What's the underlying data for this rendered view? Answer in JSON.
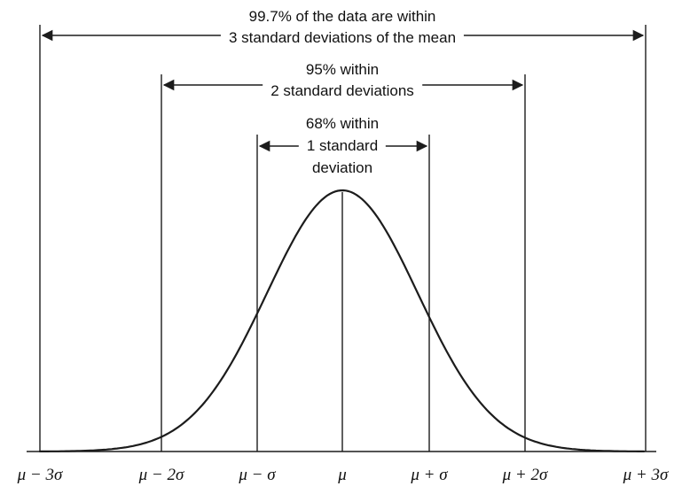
{
  "figure": {
    "background": "#ffffff",
    "line_color": "#1c1c1c"
  },
  "annotations": {
    "band3": {
      "line1": "99.7% of the data are within",
      "line2": "3 standard deviations of the mean"
    },
    "band2": {
      "line1": "95% within",
      "line2": "2 standard deviations"
    },
    "band1": {
      "line1": "68% within",
      "line2": "1 standard",
      "line3": "deviation"
    }
  },
  "chart_data": {
    "type": "line",
    "curve": "normal distribution (bell curve), empirical 68-95-99.7 rule",
    "x_ticks_sigma": [
      -3,
      -2,
      -1,
      0,
      1,
      2,
      3
    ],
    "x_tick_labels": [
      "μ − 3σ",
      "μ − 2σ",
      "μ − σ",
      "μ",
      "μ + σ",
      "μ + 2σ",
      "μ + 3σ"
    ],
    "bands": [
      {
        "span_sigma": [
          -1,
          1
        ],
        "percent": 68,
        "label": "68% within 1 standard deviation"
      },
      {
        "span_sigma": [
          -2,
          2
        ],
        "percent": 95,
        "label": "95% within 2 standard deviations"
      },
      {
        "span_sigma": [
          -3,
          3
        ],
        "percent": 99.7,
        "label": "99.7% of the data are within 3 standard deviations of the mean"
      }
    ],
    "legend": "none",
    "grid": false,
    "y_axis": "unlabeled probability density"
  }
}
